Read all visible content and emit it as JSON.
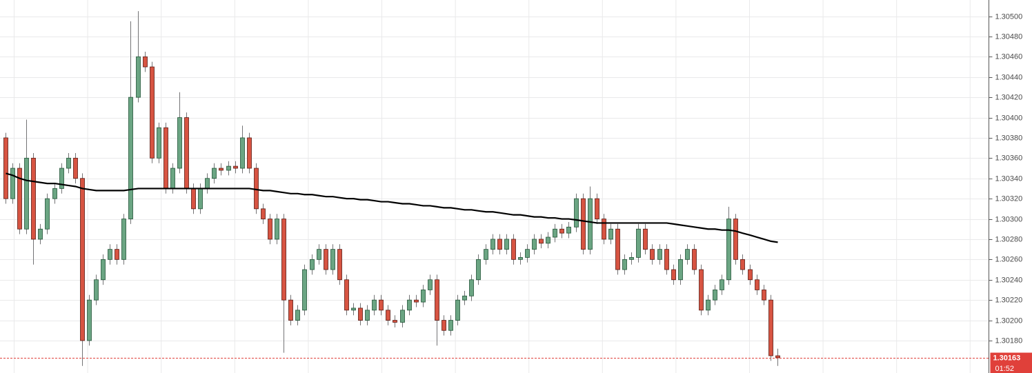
{
  "chart_data": {
    "type": "candlestick",
    "open": [
      1.3038,
      1.3032,
      1.3035,
      1.3029,
      1.3036,
      1.3028,
      1.3029,
      1.3032,
      1.3033,
      1.3035,
      1.3036,
      1.3034,
      1.3018,
      1.3022,
      1.3024,
      1.3026,
      1.3027,
      1.3026,
      1.303,
      1.3042,
      1.3046,
      1.3045,
      1.3036,
      1.3039,
      1.3033,
      1.3035,
      1.304,
      1.3033,
      1.3031,
      1.3033,
      1.3034,
      1.3035,
      1.30348,
      1.30352,
      1.3035,
      1.3038,
      1.3035,
      1.3031,
      1.303,
      1.3028,
      1.303,
      1.3022,
      1.302,
      1.3021,
      1.3025,
      1.3026,
      1.3027,
      1.3025,
      1.3027,
      1.3024,
      1.3021,
      1.30212,
      1.302,
      1.3021,
      1.3022,
      1.3021,
      1.302,
      1.30198,
      1.3021,
      1.3022,
      1.30218,
      1.3023,
      1.3024,
      1.302,
      1.3019,
      1.302,
      1.3022,
      1.30224,
      1.3024,
      1.3026,
      1.3027,
      1.3028,
      1.3027,
      1.3028,
      1.3026,
      1.30262,
      1.3027,
      1.3028,
      1.30276,
      1.30282,
      1.3029,
      1.30286,
      1.30292,
      1.3032,
      1.3027,
      1.3032,
      1.303,
      1.3028,
      1.3029,
      1.3025,
      1.3026,
      1.30262,
      1.3029,
      1.3027,
      1.3026,
      1.3027,
      1.3025,
      1.3024,
      1.3026,
      1.3027,
      1.3025,
      1.3021,
      1.3022,
      1.3023,
      1.3024,
      1.303,
      1.3026,
      1.3025,
      1.3024,
      1.3023,
      1.3022,
      1.30165
    ],
    "high": [
      1.30385,
      1.30355,
      1.30355,
      1.30398,
      1.30365,
      1.30295,
      1.30325,
      1.30335,
      1.30355,
      1.30365,
      1.30365,
      1.30345,
      1.30225,
      1.30245,
      1.30265,
      1.30275,
      1.30275,
      1.30305,
      1.30495,
      1.30505,
      1.30465,
      1.30455,
      1.30395,
      1.30395,
      1.30355,
      1.30425,
      1.30405,
      1.30335,
      1.30335,
      1.30345,
      1.30355,
      1.30355,
      1.30357,
      1.30357,
      1.30392,
      1.30385,
      1.30355,
      1.30315,
      1.30305,
      1.30305,
      1.30305,
      1.30225,
      1.30215,
      1.30255,
      1.30265,
      1.30275,
      1.30275,
      1.30275,
      1.30275,
      1.30245,
      1.30217,
      1.30217,
      1.30215,
      1.30225,
      1.30225,
      1.30215,
      1.30205,
      1.30215,
      1.30225,
      1.30225,
      1.30235,
      1.30245,
      1.30245,
      1.30205,
      1.30205,
      1.30225,
      1.30229,
      1.30245,
      1.30265,
      1.30275,
      1.30285,
      1.30285,
      1.30285,
      1.30285,
      1.30267,
      1.30275,
      1.30285,
      1.30285,
      1.30287,
      1.30295,
      1.30295,
      1.30297,
      1.30325,
      1.30325,
      1.30332,
      1.30325,
      1.30305,
      1.30295,
      1.30295,
      1.30265,
      1.30267,
      1.30295,
      1.30295,
      1.30275,
      1.30275,
      1.30275,
      1.30255,
      1.30265,
      1.30275,
      1.30275,
      1.30255,
      1.30225,
      1.30235,
      1.30245,
      1.30312,
      1.30305,
      1.30265,
      1.30255,
      1.30245,
      1.30235,
      1.30225,
      1.30172
    ],
    "low": [
      1.30315,
      1.30315,
      1.30285,
      1.30285,
      1.30255,
      1.30275,
      1.30285,
      1.30315,
      1.30325,
      1.30345,
      1.30335,
      1.30155,
      1.30175,
      1.30215,
      1.30235,
      1.30255,
      1.30255,
      1.30255,
      1.30295,
      1.30415,
      1.30445,
      1.30355,
      1.30355,
      1.30325,
      1.30325,
      1.30345,
      1.30325,
      1.30305,
      1.30305,
      1.30325,
      1.30335,
      1.30343,
      1.30343,
      1.30345,
      1.30345,
      1.30345,
      1.30305,
      1.30295,
      1.30275,
      1.30275,
      1.30168,
      1.30195,
      1.30195,
      1.30205,
      1.30245,
      1.30255,
      1.30245,
      1.30245,
      1.30235,
      1.30205,
      1.30205,
      1.30195,
      1.30195,
      1.30205,
      1.30205,
      1.30195,
      1.30193,
      1.30193,
      1.30205,
      1.30213,
      1.30213,
      1.30225,
      1.30175,
      1.30185,
      1.30185,
      1.30195,
      1.30215,
      1.30219,
      1.30235,
      1.30255,
      1.30265,
      1.30265,
      1.30265,
      1.30255,
      1.30255,
      1.30257,
      1.30265,
      1.30271,
      1.30271,
      1.30277,
      1.30281,
      1.30281,
      1.30287,
      1.30265,
      1.30265,
      1.30295,
      1.30275,
      1.30275,
      1.30245,
      1.30245,
      1.30255,
      1.30257,
      1.30265,
      1.30255,
      1.30255,
      1.30245,
      1.30235,
      1.30235,
      1.30255,
      1.30245,
      1.30205,
      1.30205,
      1.30215,
      1.30225,
      1.30235,
      1.30255,
      1.30245,
      1.30235,
      1.30225,
      1.30215,
      1.3016,
      1.30155
    ],
    "close": [
      1.3032,
      1.3035,
      1.3029,
      1.3036,
      1.3028,
      1.3029,
      1.3032,
      1.3033,
      1.3035,
      1.3036,
      1.3034,
      1.3018,
      1.3022,
      1.3024,
      1.3026,
      1.3027,
      1.3026,
      1.303,
      1.3042,
      1.3046,
      1.3045,
      1.3036,
      1.3039,
      1.3033,
      1.3035,
      1.304,
      1.3033,
      1.3031,
      1.3033,
      1.3034,
      1.3035,
      1.30348,
      1.30352,
      1.3035,
      1.3038,
      1.3035,
      1.3031,
      1.303,
      1.3028,
      1.303,
      1.3022,
      1.302,
      1.3021,
      1.3025,
      1.3026,
      1.3027,
      1.3025,
      1.3027,
      1.3024,
      1.3021,
      1.30212,
      1.302,
      1.3021,
      1.3022,
      1.3021,
      1.302,
      1.30198,
      1.3021,
      1.3022,
      1.30218,
      1.3023,
      1.3024,
      1.302,
      1.3019,
      1.302,
      1.3022,
      1.30224,
      1.3024,
      1.3026,
      1.3027,
      1.3028,
      1.3027,
      1.3028,
      1.3026,
      1.30262,
      1.3027,
      1.3028,
      1.30276,
      1.30282,
      1.3029,
      1.30286,
      1.30292,
      1.3032,
      1.3027,
      1.3032,
      1.303,
      1.3028,
      1.3029,
      1.3025,
      1.3026,
      1.30262,
      1.3029,
      1.3027,
      1.3026,
      1.3027,
      1.3025,
      1.3024,
      1.3026,
      1.3027,
      1.3025,
      1.3021,
      1.3022,
      1.3023,
      1.3024,
      1.303,
      1.3026,
      1.3025,
      1.3024,
      1.3023,
      1.3022,
      1.30165,
      1.30163
    ],
    "up_color": "#6ba583",
    "down_color": "#d75442",
    "ma": {
      "color": "#000000",
      "values": [
        1.30345,
        1.30343,
        1.3034,
        1.30338,
        1.30337,
        1.30336,
        1.30335,
        1.30335,
        1.30334,
        1.30333,
        1.30332,
        1.3033,
        1.30329,
        1.30328,
        1.30328,
        1.30328,
        1.30328,
        1.30328,
        1.30329,
        1.3033,
        1.3033,
        1.3033,
        1.3033,
        1.3033,
        1.3033,
        1.3033,
        1.3033,
        1.3033,
        1.3033,
        1.3033,
        1.3033,
        1.3033,
        1.3033,
        1.3033,
        1.3033,
        1.3033,
        1.30329,
        1.30328,
        1.30328,
        1.30327,
        1.30326,
        1.30325,
        1.30325,
        1.30324,
        1.30324,
        1.30323,
        1.30322,
        1.30322,
        1.30321,
        1.3032,
        1.3032,
        1.30319,
        1.30319,
        1.30318,
        1.30317,
        1.30317,
        1.30316,
        1.30315,
        1.30315,
        1.30314,
        1.30313,
        1.30313,
        1.30312,
        1.30311,
        1.30311,
        1.3031,
        1.30309,
        1.30309,
        1.30308,
        1.30307,
        1.30307,
        1.30306,
        1.30305,
        1.30304,
        1.30304,
        1.30303,
        1.30302,
        1.30302,
        1.30301,
        1.30301,
        1.303,
        1.303,
        1.30299,
        1.30298,
        1.30297,
        1.30296,
        1.30296,
        1.30296,
        1.30296,
        1.30296,
        1.30296,
        1.30296,
        1.30296,
        1.30296,
        1.30296,
        1.30296,
        1.30295,
        1.30294,
        1.30293,
        1.30292,
        1.30291,
        1.3029,
        1.3029,
        1.30289,
        1.30289,
        1.30288,
        1.30286,
        1.30284,
        1.30282,
        1.3028,
        1.30278,
        1.30277
      ]
    },
    "ylim": [
      1.30148,
      1.30516
    ],
    "yticks": [
      {
        "value": 1.3018,
        "label": "1.30180"
      },
      {
        "value": 1.302,
        "label": "1.30200"
      },
      {
        "value": 1.3022,
        "label": "1.30220"
      },
      {
        "value": 1.3024,
        "label": "1.30240"
      },
      {
        "value": 1.3026,
        "label": "1.30260"
      },
      {
        "value": 1.3028,
        "label": "1.30280"
      },
      {
        "value": 1.303,
        "label": "1.30300"
      },
      {
        "value": 1.3032,
        "label": "1.30320"
      },
      {
        "value": 1.3034,
        "label": "1.30340"
      },
      {
        "value": 1.3036,
        "label": "1.30360"
      },
      {
        "value": 1.3038,
        "label": "1.30380"
      },
      {
        "value": 1.304,
        "label": "1.30400"
      },
      {
        "value": 1.3042,
        "label": "1.30420"
      },
      {
        "value": 1.3044,
        "label": "1.30440"
      },
      {
        "value": 1.3046,
        "label": "1.30460"
      },
      {
        "value": 1.3048,
        "label": "1.30480"
      },
      {
        "value": 1.305,
        "label": "1.30500"
      }
    ],
    "grid": true,
    "last_price": {
      "value": 1.30163,
      "label": "1.30163"
    },
    "last_price_color": "#e0403a",
    "countdown": "01:52"
  }
}
